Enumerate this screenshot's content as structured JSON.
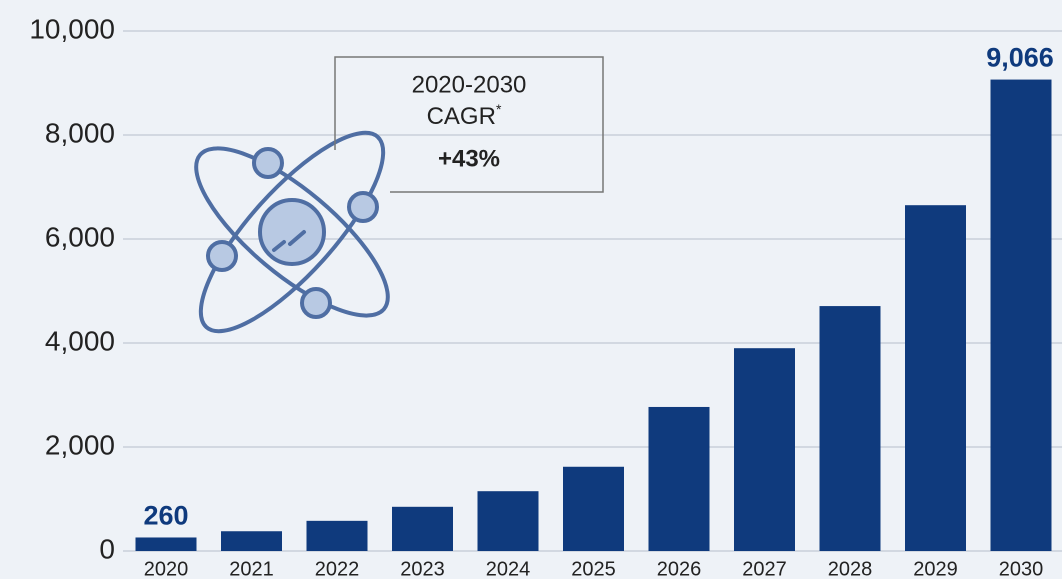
{
  "chart_data": {
    "type": "bar",
    "categories": [
      "2020",
      "2021",
      "2022",
      "2023",
      "2024",
      "2025",
      "2026",
      "2027",
      "2028",
      "2029",
      "2030"
    ],
    "values": [
      260,
      380,
      580,
      850,
      1150,
      1620,
      2770,
      3900,
      4710,
      6650,
      9066
    ],
    "value_labels": [
      "260",
      null,
      null,
      null,
      null,
      null,
      null,
      null,
      null,
      null,
      "9,066"
    ],
    "color": "#0f3a7d",
    "ylim": [
      0,
      10000
    ],
    "yticks": [
      0,
      {
        "value": 2000,
        "label": "2,000"
      },
      {
        "value": 4000,
        "label": "4,000"
      },
      {
        "value": 6000,
        "label": "6,000"
      },
      {
        "value": 8000,
        "label": "8,000"
      },
      {
        "value": 10000,
        "label": "10,000"
      }
    ],
    "grid": true,
    "annotation": {
      "period": "2020-2030",
      "metric": "CAGR",
      "footnote_mark": "*",
      "value": "+43%"
    }
  }
}
